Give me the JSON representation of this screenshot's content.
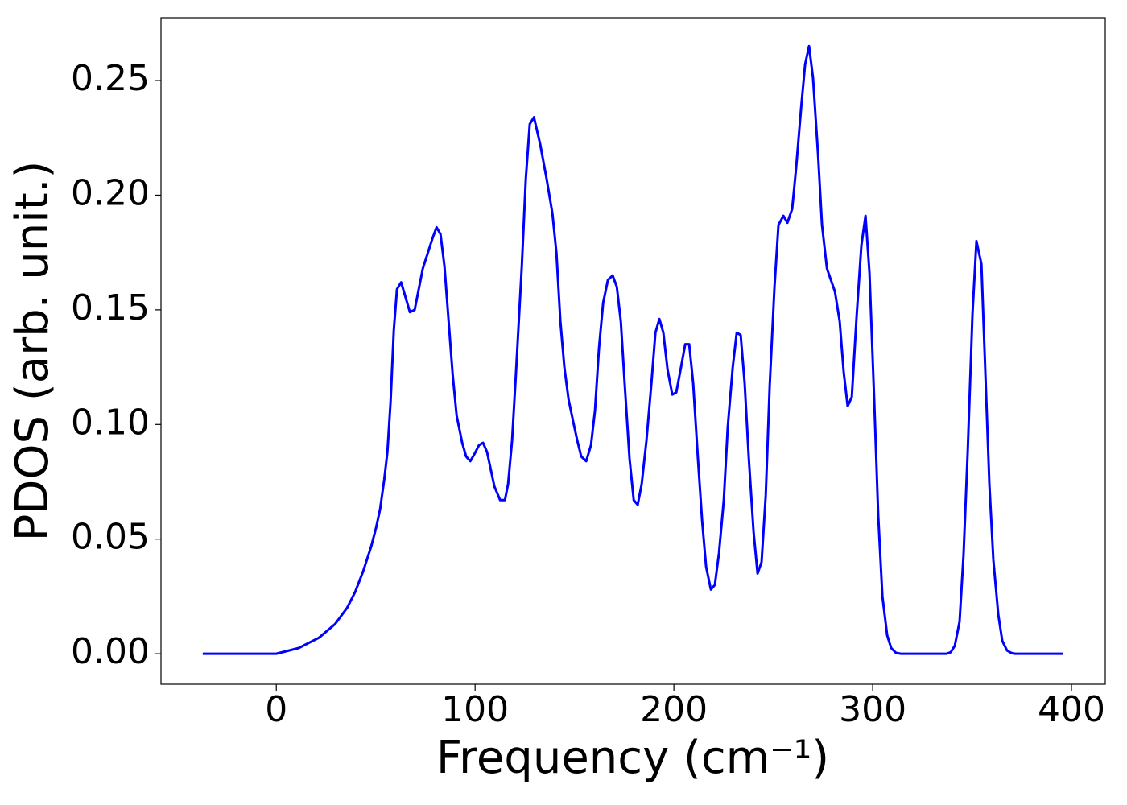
{
  "chart_data": {
    "type": "line",
    "xlabel": "Frequency (cm⁻¹)",
    "ylabel": "PDOS (arb. unit.)",
    "xlim": [
      -58,
      417
    ],
    "ylim": [
      -0.0133,
      0.2774
    ],
    "xticks": [
      0,
      100,
      200,
      300,
      400
    ],
    "yticks": [
      {
        "value": 0,
        "label": "0.00"
      },
      {
        "value": 0.05,
        "label": "0.05"
      },
      {
        "value": 0.1,
        "label": "0.10"
      },
      {
        "value": 0.15,
        "label": "0.15"
      },
      {
        "value": 0.2,
        "label": "0.20"
      },
      {
        "value": 0.25,
        "label": "0.25"
      }
    ],
    "grid": false,
    "series": [
      {
        "color": "#0000ff",
        "x": [
          -37,
          0,
          11.3,
          21.5,
          29.6,
          35.6,
          39.7,
          43.7,
          47.8,
          50.2,
          52.2,
          54.3,
          55.9,
          57.5,
          59.1,
          60.7,
          62.8,
          67.2,
          69.6,
          73.7,
          78.5,
          80.6,
          82.6,
          84.6,
          88.7,
          90.7,
          93.5,
          95.5,
          97.6,
          99.6,
          102,
          104,
          106,
          109.7,
          112.6,
          115,
          116.6,
          118.6,
          120.6,
          123.5,
          125.5,
          127.5,
          129.6,
          132.8,
          136,
          138.9,
          140.9,
          142.9,
          144.9,
          147,
          149.4,
          151.4,
          153.4,
          155.9,
          158.3,
          160.3,
          162.3,
          164.4,
          166.8,
          169.2,
          171.3,
          173.3,
          175.3,
          177.7,
          179.8,
          181.8,
          183.8,
          186.2,
          188.7,
          190.7,
          192.7,
          194.7,
          196.8,
          199.2,
          201.2,
          203.6,
          205.7,
          207.7,
          209.7,
          212.1,
          214.2,
          216.2,
          218.6,
          220.6,
          222.7,
          225.1,
          227.1,
          229.6,
          231.6,
          233.6,
          235.6,
          237.7,
          240.1,
          242.1,
          244.1,
          246.2,
          248.2,
          250.6,
          252.6,
          255.1,
          257.1,
          259.5,
          261.5,
          264,
          266,
          268,
          270,
          272.5,
          274.5,
          277,
          281,
          283.4,
          285.4,
          287.4,
          289.5,
          291.9,
          294.3,
          296.4,
          298.4,
          300.8,
          302.8,
          304.9,
          307.3,
          309.3,
          311.7,
          314.2,
          337.2,
          339.3,
          341.3,
          343.7,
          345.7,
          347.8,
          350.2,
          352.2,
          354.7,
          356.7,
          358.7,
          360.7,
          363.2,
          365.2,
          367.6,
          369.6,
          371.7,
          395.9
        ],
        "values": [
          0,
          0,
          0.0025,
          0.007,
          0.013,
          0.02,
          0.027,
          0.036,
          0.047,
          0.055,
          0.063,
          0.076,
          0.088,
          0.11,
          0.141,
          0.159,
          0.162,
          0.149,
          0.15,
          0.168,
          0.181,
          0.186,
          0.183,
          0.169,
          0.122,
          0.104,
          0.092,
          0.086,
          0.084,
          0.087,
          0.091,
          0.092,
          0.088,
          0.073,
          0.067,
          0.067,
          0.074,
          0.093,
          0.123,
          0.169,
          0.207,
          0.231,
          0.234,
          0.222,
          0.207,
          0.192,
          0.175,
          0.145,
          0.125,
          0.111,
          0.101,
          0.093,
          0.086,
          0.084,
          0.091,
          0.106,
          0.133,
          0.153,
          0.163,
          0.165,
          0.16,
          0.145,
          0.117,
          0.085,
          0.067,
          0.065,
          0.074,
          0.093,
          0.118,
          0.14,
          0.146,
          0.14,
          0.124,
          0.113,
          0.114,
          0.125,
          0.135,
          0.135,
          0.118,
          0.085,
          0.058,
          0.038,
          0.028,
          0.03,
          0.044,
          0.067,
          0.099,
          0.125,
          0.14,
          0.139,
          0.118,
          0.085,
          0.053,
          0.035,
          0.04,
          0.069,
          0.117,
          0.16,
          0.187,
          0.191,
          0.188,
          0.194,
          0.212,
          0.238,
          0.257,
          0.265,
          0.251,
          0.218,
          0.187,
          0.168,
          0.158,
          0.145,
          0.123,
          0.108,
          0.112,
          0.147,
          0.178,
          0.191,
          0.166,
          0.11,
          0.06,
          0.025,
          0.008,
          0.0025,
          0.0004,
          0,
          0,
          0.0007,
          0.0035,
          0.014,
          0.043,
          0.088,
          0.148,
          0.18,
          0.17,
          0.122,
          0.074,
          0.041,
          0.017,
          0.0056,
          0.0014,
          0.0004,
          0,
          0
        ]
      }
    ]
  }
}
